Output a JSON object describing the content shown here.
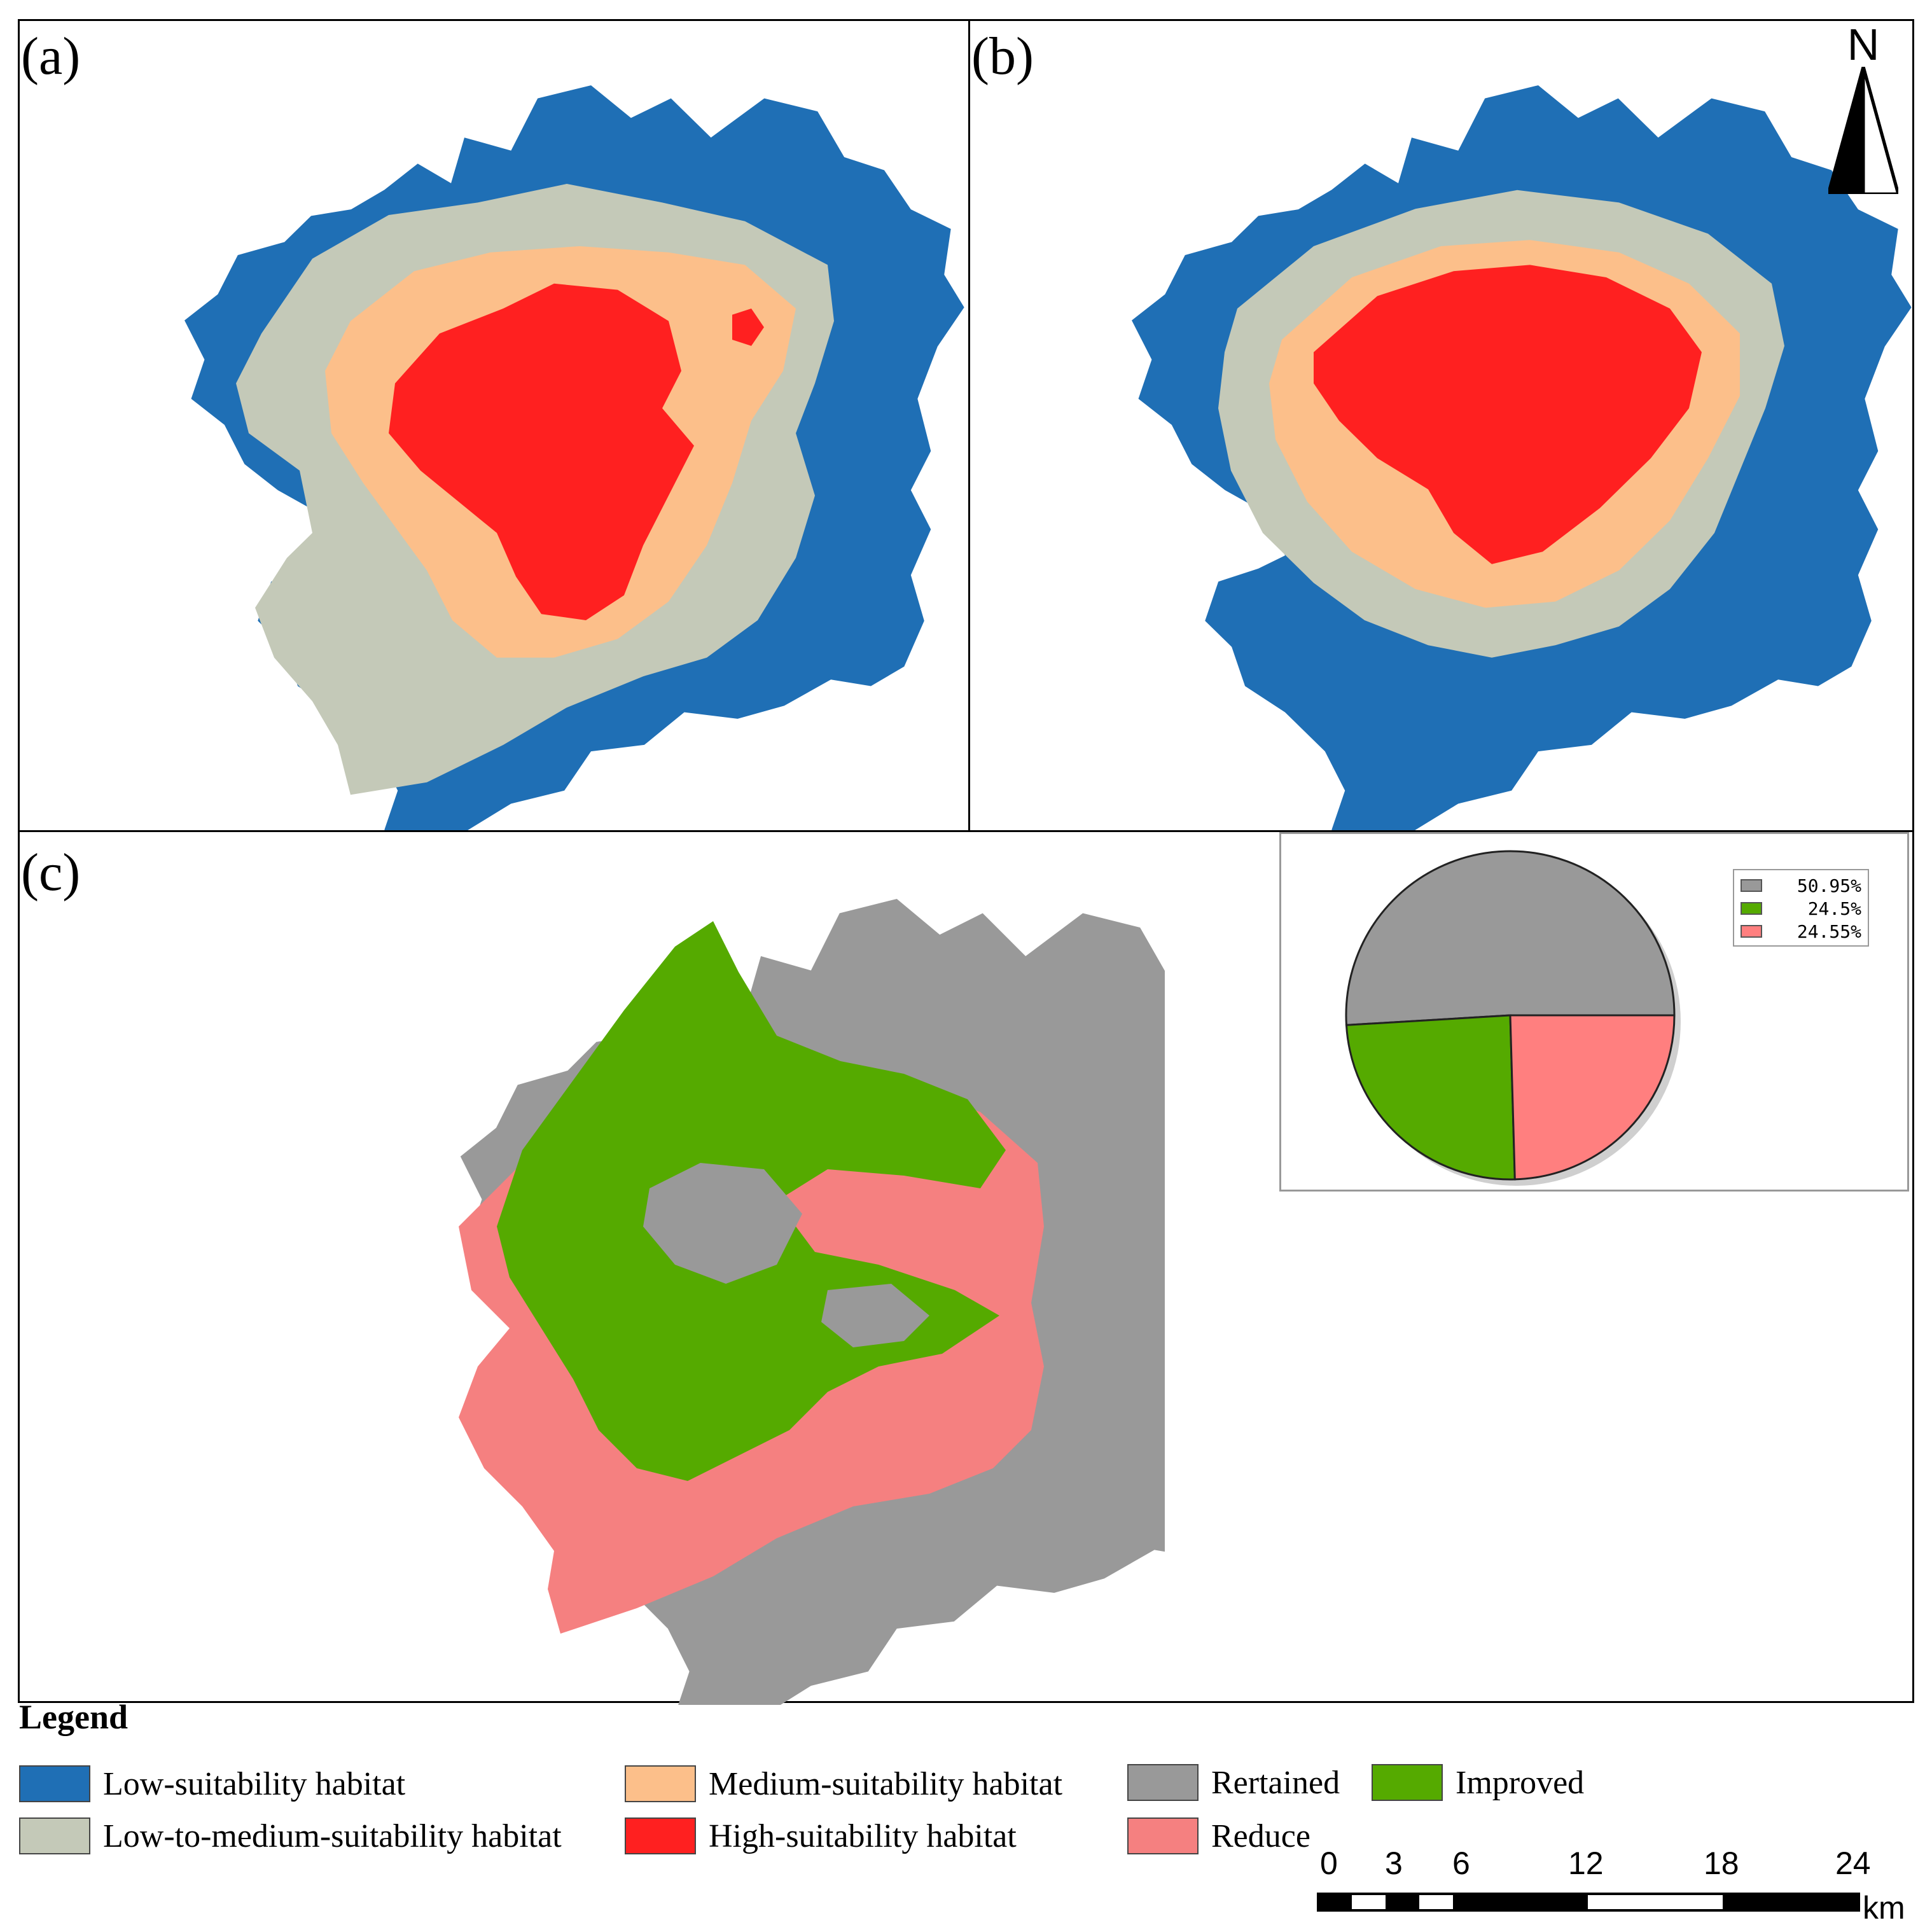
{
  "panels": {
    "a": {
      "label": "(a)"
    },
    "b": {
      "label": "(b)"
    },
    "c": {
      "label": "(c)"
    }
  },
  "north_arrow": {
    "label": "N"
  },
  "pie": {
    "slices": [
      {
        "label": "50.95%",
        "value": 50.95,
        "color": "#999999"
      },
      {
        "label": "24.5%",
        "value": 24.5,
        "color": "#55aa00"
      },
      {
        "label": "24.55%",
        "value": 24.55,
        "color": "#ff7f7f"
      }
    ]
  },
  "colors": {
    "low": "#1f6fb5",
    "low_medium": "#c4c9b8",
    "medium": "#fcbf8a",
    "high": "#ff2020",
    "retained": "#999999",
    "improved": "#55aa00",
    "reduce": "#f58080"
  },
  "legend": {
    "title": "Legend",
    "items": [
      {
        "key": "low",
        "label": "Low-suitability habitat",
        "color": "#1f6fb5"
      },
      {
        "key": "low_medium",
        "label": "Low-to-medium-suitability habitat",
        "color": "#c4c9b8"
      },
      {
        "key": "medium",
        "label": "Medium-suitability habitat",
        "color": "#fcbf8a"
      },
      {
        "key": "high",
        "label": "High-suitability habitat",
        "color": "#ff2020"
      },
      {
        "key": "retained",
        "label": "Rertained",
        "color": "#999999"
      },
      {
        "key": "improved",
        "label": "Improved",
        "color": "#55aa00"
      },
      {
        "key": "reduce",
        "label": "Reduce",
        "color": "#f58080"
      }
    ]
  },
  "scale_bar": {
    "ticks": [
      "0",
      "3",
      "6",
      "12",
      "18",
      "24"
    ],
    "unit": "km"
  }
}
